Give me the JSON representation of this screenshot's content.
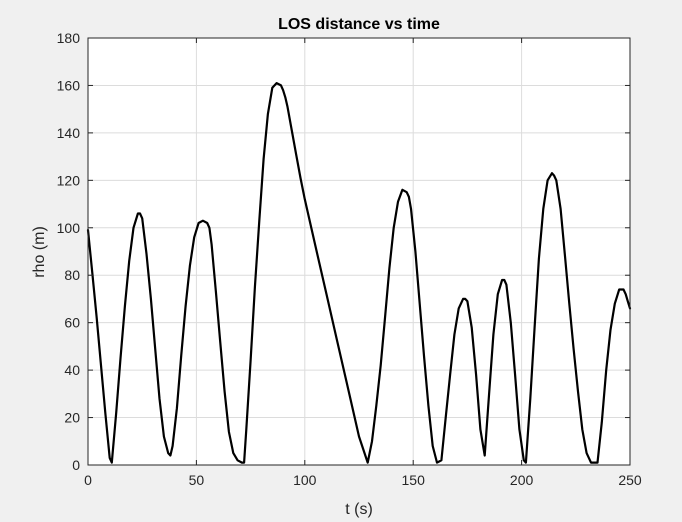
{
  "chart_data": {
    "type": "line",
    "title": "LOS distance vs time",
    "xlabel": "t (s)",
    "ylabel": "rho (m)",
    "xlim": [
      0,
      250
    ],
    "ylim": [
      0,
      180
    ],
    "xticks": [
      0,
      50,
      100,
      150,
      200,
      250
    ],
    "yticks": [
      0,
      20,
      40,
      60,
      80,
      100,
      120,
      140,
      160,
      180
    ],
    "grid": true,
    "legend": "none",
    "colors": {
      "line": "#000000",
      "grid": "#dcdcdc",
      "axes": "#262626",
      "plot_bg": "#ffffff",
      "figure_bg": "#f0f0f0"
    },
    "series": [
      {
        "x": [
          0,
          2,
          4,
          6,
          8,
          10,
          11,
          13,
          15,
          17,
          19,
          21,
          23,
          24,
          25,
          27,
          29,
          31,
          33,
          35,
          37,
          38,
          39,
          41,
          43,
          45,
          47,
          49,
          51,
          53,
          55,
          56,
          57,
          59,
          61,
          63,
          65,
          67,
          69,
          71,
          72,
          73,
          75,
          77,
          79,
          81,
          83,
          85,
          87,
          89,
          90,
          91,
          92,
          94,
          96,
          98,
          100,
          105,
          110,
          115,
          120,
          125,
          129,
          131,
          133,
          135,
          137,
          139,
          141,
          143,
          145,
          147,
          148,
          149,
          151,
          153,
          155,
          157,
          159,
          161,
          163,
          165,
          167,
          169,
          171,
          173,
          174,
          175,
          177,
          179,
          181,
          183,
          185,
          187,
          189,
          191,
          192,
          193,
          195,
          197,
          199,
          201,
          202,
          204,
          206,
          208,
          210,
          212,
          214,
          215,
          216,
          218,
          220,
          222,
          224,
          226,
          228,
          230,
          232,
          234,
          235,
          237,
          239,
          241,
          243,
          245,
          247,
          248,
          249,
          250
        ],
        "y": [
          99,
          81,
          62,
          42,
          22,
          3,
          1,
          22,
          45,
          67,
          86,
          100,
          106,
          106,
          104,
          89,
          70,
          49,
          28,
          12,
          5,
          4,
          8,
          24,
          46,
          67,
          84,
          96,
          102,
          103,
          102,
          100,
          93,
          73,
          52,
          31,
          14,
          5,
          2,
          1,
          1,
          15,
          44,
          75,
          103,
          129,
          148,
          159,
          161,
          160,
          158,
          155,
          151,
          141,
          131,
          121,
          112,
          92,
          72,
          52,
          32,
          12,
          1,
          10,
          25,
          42,
          62,
          83,
          100,
          111,
          116,
          115,
          113,
          108,
          90,
          68,
          46,
          25,
          8,
          1,
          2,
          20,
          38,
          55,
          66,
          70,
          70,
          69,
          58,
          38,
          15,
          4,
          30,
          55,
          72,
          78,
          78,
          76,
          60,
          38,
          15,
          2,
          1,
          28,
          58,
          87,
          108,
          120,
          123,
          122,
          120,
          108,
          88,
          68,
          49,
          31,
          15,
          5,
          1,
          1,
          1,
          18,
          40,
          57,
          68,
          74,
          74,
          72,
          69,
          66
        ]
      }
    ]
  }
}
